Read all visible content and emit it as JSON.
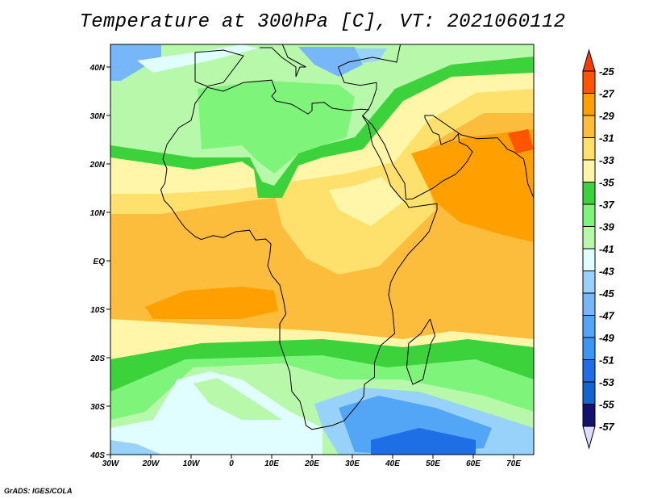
{
  "title": "Temperature at 300hPa [C], VT: 2021060112",
  "footer": "GrADS: IGES/COLA",
  "map": {
    "lon_labels": [
      "30W",
      "20W",
      "10W",
      "0",
      "10E",
      "20E",
      "30E",
      "40E",
      "50E",
      "60E",
      "70E"
    ],
    "lat_labels": [
      "40N",
      "30N",
      "20N",
      "10N",
      "EQ",
      "10S",
      "20S",
      "30S",
      "40S"
    ]
  },
  "colorbar": {
    "labels": [
      "-25",
      "-27",
      "-29",
      "-31",
      "-33",
      "-35",
      "-37",
      "-39",
      "-41",
      "-43",
      "-45",
      "-47",
      "-49",
      "-51",
      "-53",
      "-55",
      "-57"
    ],
    "colors": [
      "#ff5400",
      "#ffa000",
      "#fcbd3c",
      "#fde16c",
      "#fff6aa",
      "#3cd23c",
      "#7ef47a",
      "#b8f8aa",
      "#e0feff",
      "#98d2fa",
      "#78b6fa",
      "#52a6f5",
      "#3c96f5",
      "#1e6ee6",
      "#1464d0",
      "#12126e"
    ],
    "over_color": "#ff3a00",
    "under_color": "#dcdcff"
  }
}
